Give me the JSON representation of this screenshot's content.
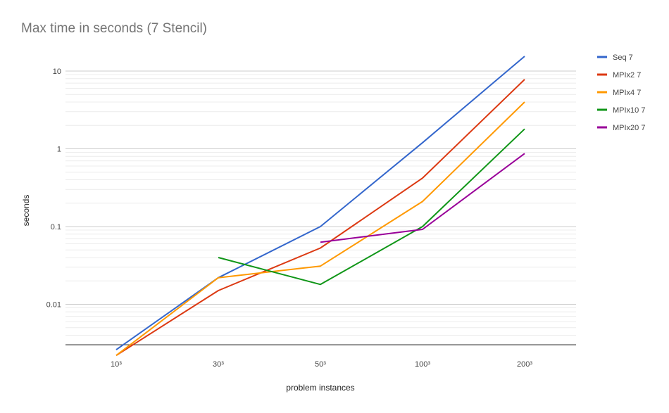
{
  "chart_data": {
    "type": "line",
    "title": "Max time in seconds (7 Stencil)",
    "xlabel": "problem instances",
    "ylabel": "seconds",
    "categories": [
      "10³",
      "30³",
      "50³",
      "100³",
      "200³"
    ],
    "y_scale": "log",
    "ylim": [
      0.0018,
      20
    ],
    "yticks": [
      {
        "value": 10,
        "label": "10"
      },
      {
        "value": 1,
        "label": "1"
      },
      {
        "value": 0.1,
        "label": "0.1"
      },
      {
        "value": 0.01,
        "label": "0.01"
      }
    ],
    "grid": true,
    "legend_position": "right",
    "series": [
      {
        "name": "Seq 7",
        "color": "#3366cc",
        "values": [
          0.0026,
          0.022,
          0.1,
          1.2,
          15.5
        ]
      },
      {
        "name": "MPIx2 7",
        "color": "#dc3912",
        "values": [
          0.0022,
          0.015,
          0.053,
          0.42,
          7.8
        ]
      },
      {
        "name": "MPIx4 7",
        "color": "#ff9900",
        "values": [
          0.0022,
          0.022,
          0.031,
          0.21,
          4.0
        ]
      },
      {
        "name": "MPIx10 7",
        "color": "#109618",
        "values": [
          null,
          0.04,
          0.018,
          0.1,
          1.8
        ]
      },
      {
        "name": "MPIx20 7",
        "color": "#990099",
        "values": [
          null,
          null,
          0.063,
          0.092,
          0.87
        ]
      }
    ]
  }
}
